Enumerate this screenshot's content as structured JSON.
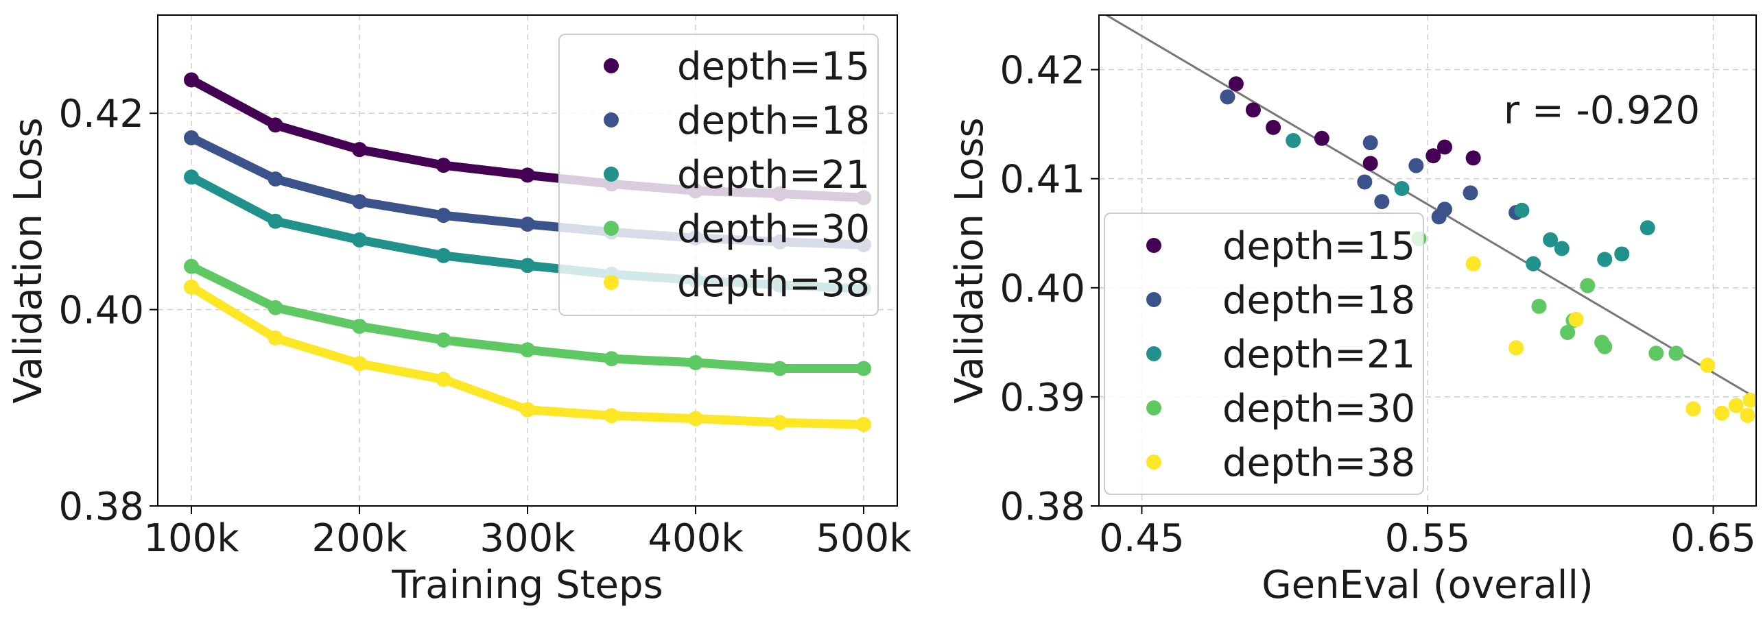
{
  "colors": {
    "depth=15": "#440154",
    "depth=18": "#3b528b",
    "depth=21": "#21918c",
    "depth=30": "#5ec962",
    "depth=38": "#fde725",
    "grid": "#cfcfcf",
    "fit_line": "#777777"
  },
  "chart_data": [
    {
      "type": "line",
      "xlabel": "Training Steps",
      "ylabel": "Validation Loss",
      "xlim": [
        80000,
        520000
      ],
      "ylim": [
        0.38,
        0.43
      ],
      "xticks": [
        100000,
        200000,
        300000,
        400000,
        500000
      ],
      "xtick_labels": [
        "100k",
        "200k",
        "300k",
        "400k",
        "500k"
      ],
      "yticks": [
        0.38,
        0.4,
        0.42
      ],
      "ytick_labels": [
        "0.38",
        "0.40",
        "0.42"
      ],
      "grid": true,
      "legend_position": "top-right",
      "x": [
        100000,
        150000,
        200000,
        250000,
        300000,
        350000,
        400000,
        450000,
        500000
      ],
      "series": [
        {
          "name": "depth=15",
          "values": [
            0.4234,
            0.4188,
            0.4163,
            0.4147,
            0.4137,
            0.4128,
            0.4121,
            0.4118,
            0.4114
          ]
        },
        {
          "name": "depth=18",
          "values": [
            0.4175,
            0.4133,
            0.411,
            0.4096,
            0.4087,
            0.4079,
            0.4073,
            0.4069,
            0.4066
          ]
        },
        {
          "name": "depth=21",
          "values": [
            0.4135,
            0.409,
            0.4071,
            0.4055,
            0.4045,
            0.4036,
            0.403,
            0.4025,
            0.4021
          ]
        },
        {
          "name": "depth=30",
          "values": [
            0.4044,
            0.4002,
            0.3983,
            0.3969,
            0.3959,
            0.395,
            0.3946,
            0.394,
            0.394
          ]
        },
        {
          "name": "depth=38",
          "values": [
            0.4023,
            0.3971,
            0.3945,
            0.3929,
            0.3898,
            0.3892,
            0.3889,
            0.3885,
            0.3883
          ]
        }
      ]
    },
    {
      "type": "scatter",
      "xlabel": "GenEval (overall)",
      "ylabel": "Validation Loss",
      "xlim": [
        0.435,
        0.665
      ],
      "ylim": [
        0.38,
        0.425
      ],
      "xticks": [
        0.45,
        0.55,
        0.65
      ],
      "xtick_labels": [
        "0.45",
        "0.55",
        "0.65"
      ],
      "yticks": [
        0.38,
        0.39,
        0.4,
        0.41,
        0.42
      ],
      "ytick_labels": [
        "0.38",
        "0.39",
        "0.40",
        "0.41",
        "0.42"
      ],
      "grid": true,
      "legend_position": "bottom-left",
      "annotation": "r = -0.920",
      "fit_line": {
        "x": [
          0.435,
          0.665
        ],
        "y": [
          0.4254,
          0.3899
        ]
      },
      "series": [
        {
          "name": "depth=15",
          "points": [
            [
              0.483,
              0.4187
            ],
            [
              0.489,
              0.4163
            ],
            [
              0.496,
              0.4147
            ],
            [
              0.513,
              0.4137
            ],
            [
              0.53,
              0.4114
            ],
            [
              0.552,
              0.4121
            ],
            [
              0.556,
              0.4129
            ],
            [
              0.566,
              0.4119
            ]
          ]
        },
        {
          "name": "depth=18",
          "points": [
            [
              0.48,
              0.4175
            ],
            [
              0.53,
              0.4133
            ],
            [
              0.528,
              0.4097
            ],
            [
              0.534,
              0.4079
            ],
            [
              0.546,
              0.4112
            ],
            [
              0.554,
              0.4065
            ],
            [
              0.556,
              0.4072
            ],
            [
              0.565,
              0.4087
            ],
            [
              0.581,
              0.4069
            ]
          ]
        },
        {
          "name": "depth=21",
          "points": [
            [
              0.503,
              0.4135
            ],
            [
              0.541,
              0.4091
            ],
            [
              0.583,
              0.4071
            ],
            [
              0.587,
              0.4022
            ],
            [
              0.593,
              0.4044
            ],
            [
              0.597,
              0.4036
            ],
            [
              0.612,
              0.4026
            ],
            [
              0.618,
              0.4031
            ],
            [
              0.627,
              0.4055
            ]
          ]
        },
        {
          "name": "depth=30",
          "points": [
            [
              0.547,
              0.4045
            ],
            [
              0.589,
              0.3983
            ],
            [
              0.599,
              0.3959
            ],
            [
              0.601,
              0.397
            ],
            [
              0.606,
              0.4002
            ],
            [
              0.611,
              0.395
            ],
            [
              0.612,
              0.3946
            ],
            [
              0.63,
              0.394
            ],
            [
              0.637,
              0.394
            ]
          ]
        },
        {
          "name": "depth=38",
          "points": [
            [
              0.566,
              0.4022
            ],
            [
              0.581,
              0.3945
            ],
            [
              0.602,
              0.3971
            ],
            [
              0.643,
              0.3889
            ],
            [
              0.648,
              0.3929
            ],
            [
              0.653,
              0.3885
            ],
            [
              0.658,
              0.3892
            ],
            [
              0.662,
              0.3883
            ],
            [
              0.663,
              0.3897
            ]
          ]
        }
      ]
    }
  ]
}
